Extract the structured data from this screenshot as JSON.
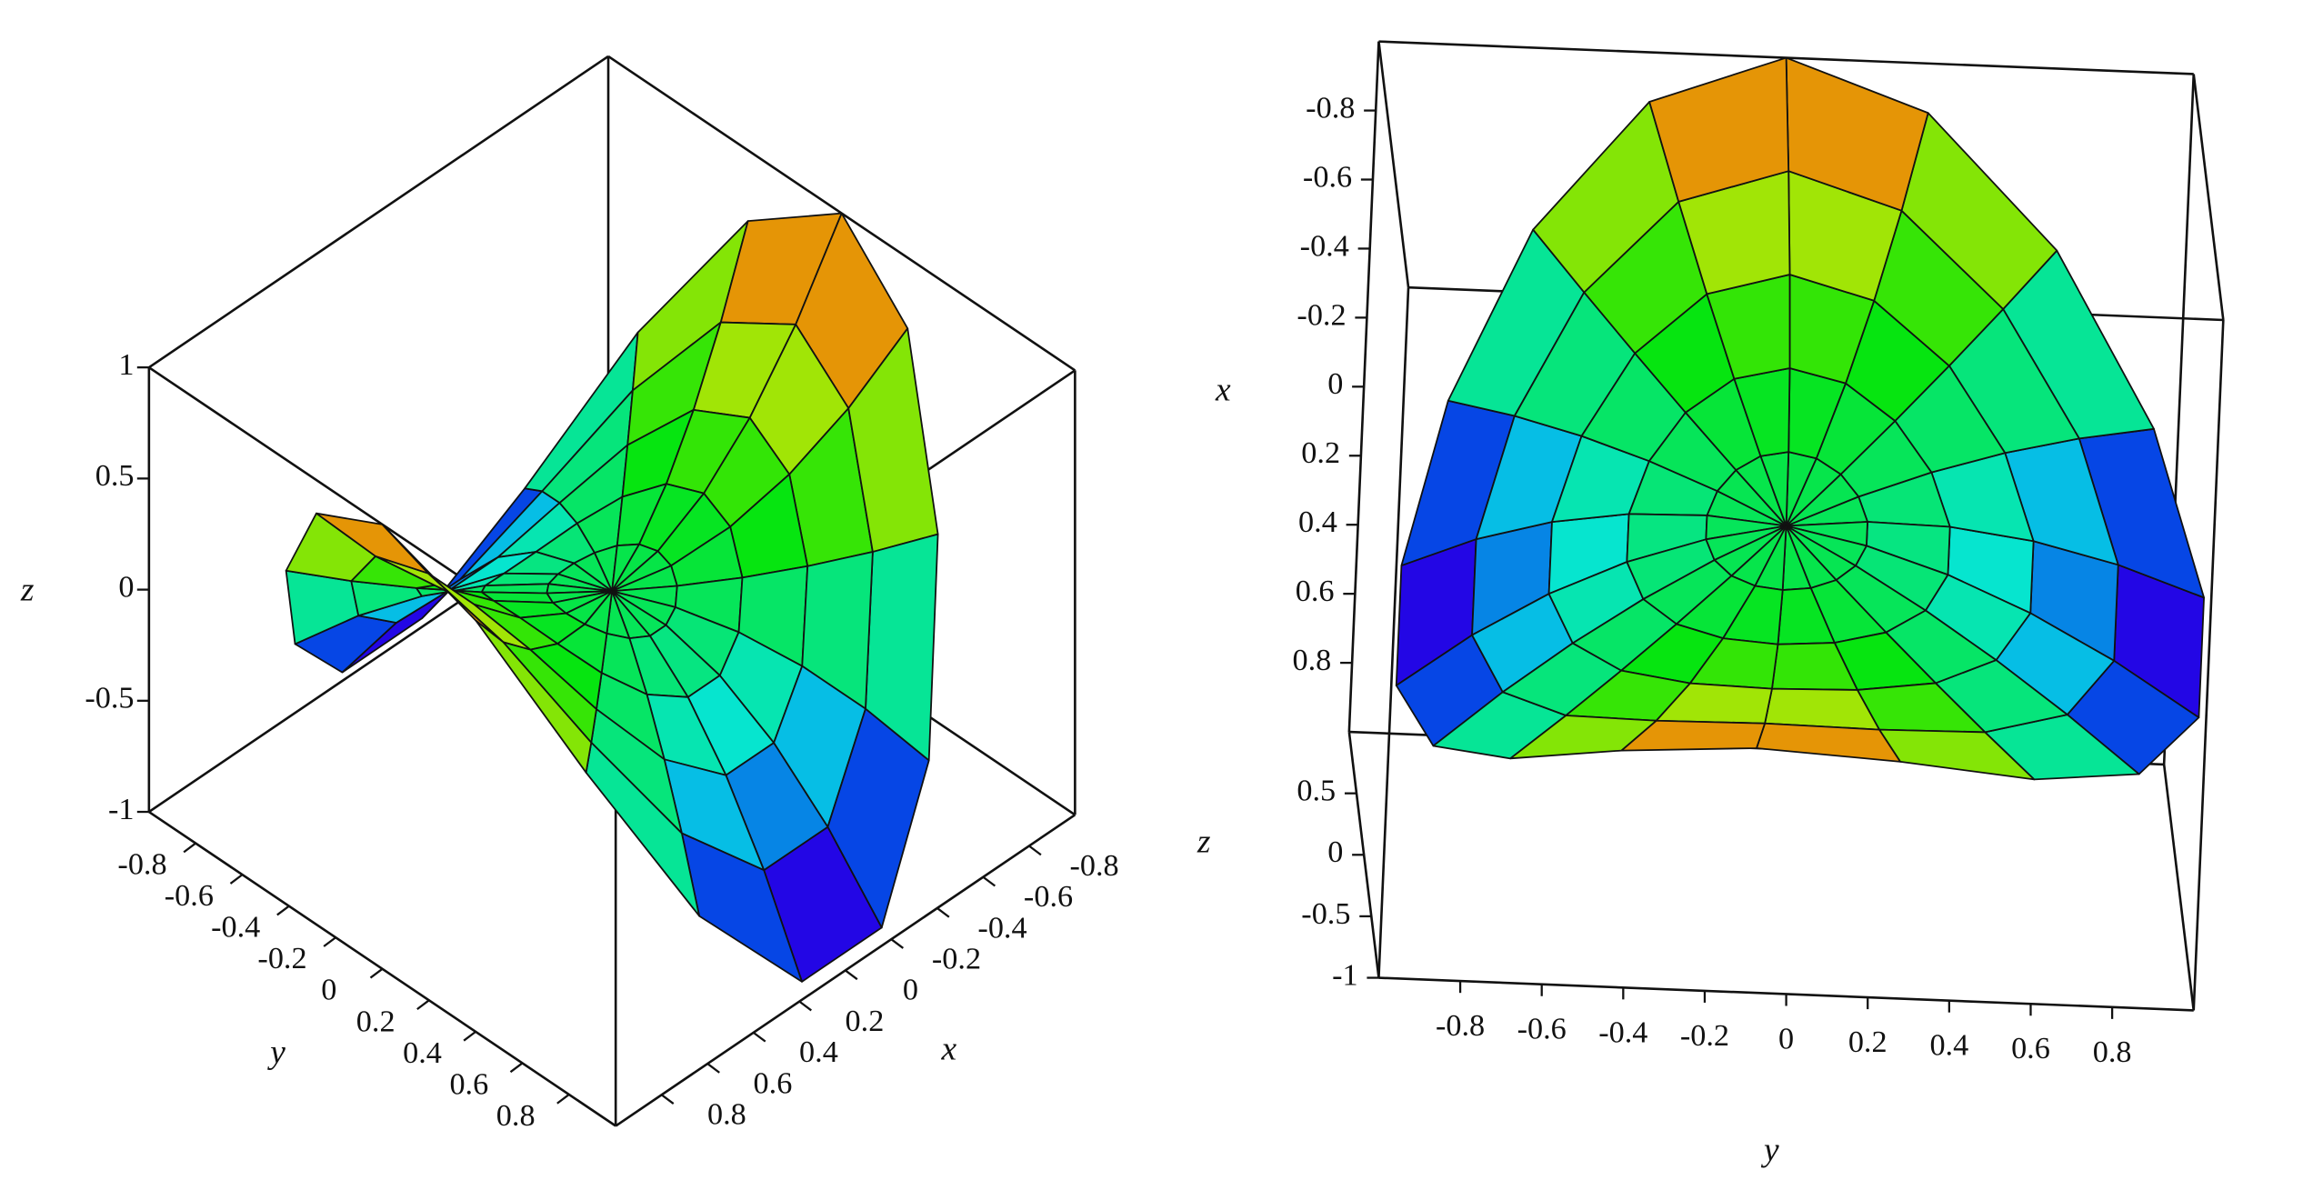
{
  "chart_data": [
    {
      "type": "surface",
      "xlabel": "x",
      "ylabel": "y",
      "zlabel": "z",
      "xlim": [
        -1,
        1
      ],
      "ylim": [
        -1,
        1
      ],
      "zlim": [
        -1,
        1
      ],
      "xticks": [
        -0.8,
        -0.6,
        -0.4,
        -0.2,
        0,
        0.2,
        0.4,
        0.6,
        0.8
      ],
      "yticks": [
        -0.8,
        -0.6,
        -0.4,
        -0.2,
        0,
        0.2,
        0.4,
        0.6,
        0.8
      ],
      "zticks": [
        -1,
        -0.5,
        0,
        0.5,
        1
      ],
      "r": [
        0,
        0.2,
        0.4,
        0.6,
        0.8,
        1
      ],
      "theta": [
        0,
        20,
        40,
        60,
        80,
        100,
        120,
        140,
        160,
        180,
        200,
        220,
        240,
        260,
        280,
        300,
        320,
        340
      ],
      "z": [
        [
          0,
          0,
          0,
          0,
          0,
          0,
          0,
          0,
          0,
          0,
          0,
          0,
          0,
          0,
          0,
          0,
          0,
          0
        ],
        [
          0.04,
          0.031,
          0.007,
          -0.02,
          -0.038,
          -0.038,
          -0.02,
          0.007,
          0.031,
          0.04,
          0.031,
          0.007,
          -0.02,
          -0.038,
          -0.038,
          -0.02,
          0.007,
          0.031
        ],
        [
          0.16,
          0.123,
          0.028,
          -0.08,
          -0.15,
          -0.15,
          -0.08,
          0.028,
          0.123,
          0.16,
          0.123,
          0.028,
          -0.08,
          -0.15,
          -0.15,
          -0.08,
          0.028,
          0.123
        ],
        [
          0.36,
          0.276,
          0.063,
          -0.18,
          -0.338,
          -0.338,
          -0.18,
          0.063,
          0.276,
          0.36,
          0.276,
          0.063,
          -0.18,
          -0.338,
          -0.338,
          -0.18,
          0.063,
          0.276
        ],
        [
          0.64,
          0.49,
          0.111,
          -0.32,
          -0.602,
          -0.602,
          -0.32,
          0.111,
          0.49,
          0.64,
          0.49,
          0.111,
          -0.32,
          -0.602,
          -0.602,
          -0.32,
          0.111,
          0.49
        ],
        [
          1,
          0.766,
          0.174,
          -0.5,
          -0.94,
          -0.94,
          -0.5,
          0.174,
          0.766,
          1,
          0.766,
          0.174,
          -0.5,
          -0.94,
          -0.94,
          -0.5,
          0.174,
          0.766
        ]
      ]
    },
    {
      "type": "surface",
      "xlabel": "x",
      "ylabel": "y",
      "zlabel": "z",
      "xlim": [
        -1,
        1
      ],
      "ylim": [
        -1,
        1
      ],
      "zlim": [
        -1,
        1
      ],
      "xticks": [
        -0.8,
        -0.6,
        -0.4,
        -0.2,
        0,
        0.2,
        0.4,
        0.6,
        0.8
      ],
      "yticks": [
        -0.8,
        -0.6,
        -0.4,
        -0.2,
        0,
        0.2,
        0.4,
        0.6,
        0.8
      ],
      "zticks": [
        -1,
        -0.5,
        0,
        0.5
      ],
      "r": [
        0,
        0.2,
        0.4,
        0.6,
        0.8,
        1
      ],
      "theta": [
        0,
        20,
        40,
        60,
        80,
        100,
        120,
        140,
        160,
        180,
        200,
        220,
        240,
        260,
        280,
        300,
        320,
        340
      ],
      "z": [
        [
          0,
          0,
          0,
          0,
          0,
          0,
          0,
          0,
          0,
          0,
          0,
          0,
          0,
          0,
          0,
          0,
          0,
          0
        ],
        [
          0.04,
          0.031,
          0.007,
          -0.02,
          -0.038,
          -0.038,
          -0.02,
          0.007,
          0.031,
          0.04,
          0.031,
          0.007,
          -0.02,
          -0.038,
          -0.038,
          -0.02,
          0.007,
          0.031
        ],
        [
          0.16,
          0.123,
          0.028,
          -0.08,
          -0.15,
          -0.15,
          -0.08,
          0.028,
          0.123,
          0.16,
          0.123,
          0.028,
          -0.08,
          -0.15,
          -0.15,
          -0.08,
          0.028,
          0.123
        ],
        [
          0.36,
          0.276,
          0.063,
          -0.18,
          -0.338,
          -0.338,
          -0.18,
          0.063,
          0.276,
          0.36,
          0.276,
          0.063,
          -0.18,
          -0.338,
          -0.338,
          -0.18,
          0.063,
          0.276
        ],
        [
          0.64,
          0.49,
          0.111,
          -0.32,
          -0.602,
          -0.602,
          -0.32,
          0.111,
          0.49,
          0.64,
          0.49,
          0.111,
          -0.32,
          -0.602,
          -0.602,
          -0.32,
          0.111,
          0.49
        ],
        [
          1,
          0.766,
          0.174,
          -0.5,
          -0.94,
          -0.94,
          -0.5,
          0.174,
          0.766,
          1,
          0.766,
          0.174,
          -0.5,
          -0.94,
          -0.94,
          -0.5,
          0.174,
          0.766
        ]
      ]
    }
  ]
}
